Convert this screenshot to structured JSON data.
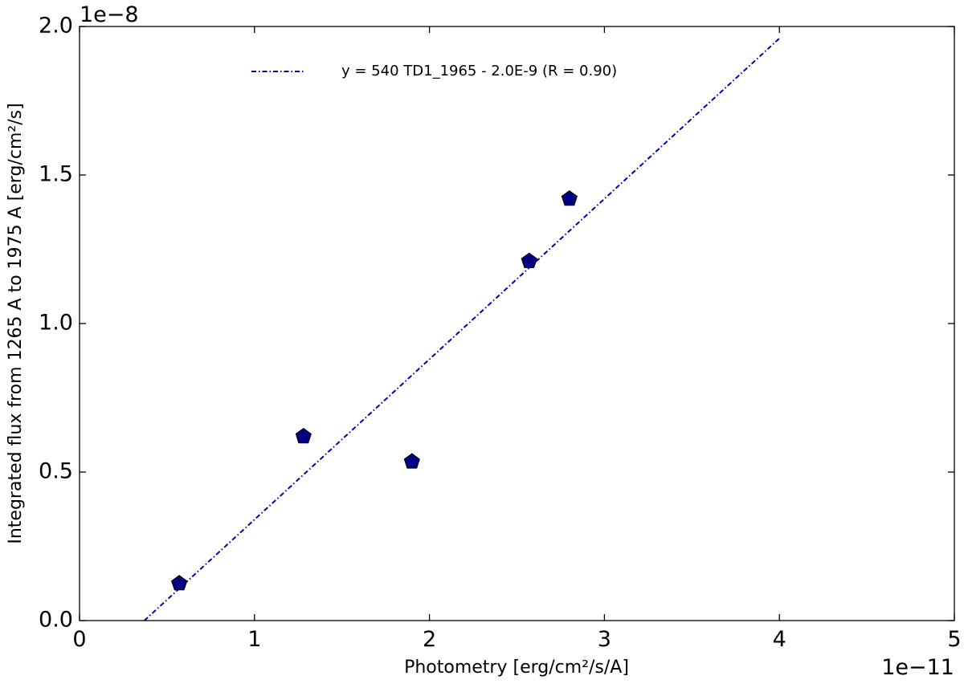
{
  "chart_data": {
    "type": "scatter",
    "title": "",
    "xlabel": "Photometry [erg/cm²/s/A]",
    "ylabel": "Integrated flux from 1265 A to 1975 A [erg/cm²/s]",
    "x_multiplier": "1e−11",
    "y_multiplier": "1e−8",
    "xlim": [
      0,
      5
    ],
    "ylim": [
      0,
      2
    ],
    "x_ticks": [
      "0",
      "1",
      "2",
      "3",
      "4",
      "5"
    ],
    "y_ticks": [
      "0.0",
      "0.5",
      "1.0",
      "1.5",
      "2.0"
    ],
    "grid": false,
    "points": [
      {
        "x": 0.57,
        "y": 0.125
      },
      {
        "x": 1.28,
        "y": 0.62
      },
      {
        "x": 1.9,
        "y": 0.535
      },
      {
        "x": 2.57,
        "y": 1.21
      },
      {
        "x": 2.8,
        "y": 1.42
      }
    ],
    "fit_line": {
      "label": "y = 540 TD1_1965 - 2.0E-9 (R = 0.90)",
      "slope": 540,
      "intercept": -2e-09,
      "x_range": [
        0.37,
        4.0
      ]
    },
    "legend_position": "top",
    "marker_color": "#000080",
    "line_color": "#0000b3"
  }
}
